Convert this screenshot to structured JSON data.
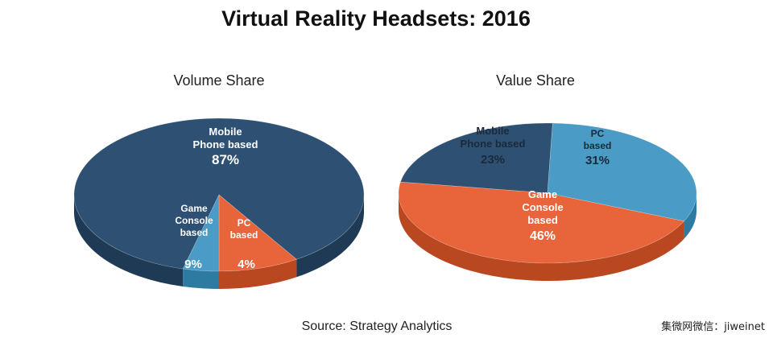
{
  "title": "Virtual Reality Headsets:  2016",
  "source": "Source: Strategy Analytics",
  "watermark": "集微网微信：jiweinet",
  "colors": {
    "mobile": "#2D5073",
    "mobile_side": "#1F3A55",
    "game": "#E8643A",
    "game_side": "#B9471F",
    "pc": "#4A9BC5",
    "pc_side": "#2E7BA2",
    "label_light": "#ffffff",
    "label_dark": "#1B2A3A"
  },
  "chart_data": [
    {
      "type": "pie",
      "title": "Volume Share",
      "slices": [
        {
          "key": "mobile",
          "label": [
            "Mobile",
            "Phone based"
          ],
          "value": 87,
          "value_label": "87%"
        },
        {
          "key": "game",
          "label": [
            "Game",
            "Console",
            "based"
          ],
          "value": 9,
          "value_label": "9%"
        },
        {
          "key": "pc",
          "label": [
            "PC",
            "based"
          ],
          "value": 4,
          "value_label": "4%"
        }
      ]
    },
    {
      "type": "pie",
      "title": "Value Share",
      "slices": [
        {
          "key": "mobile",
          "label": [
            "Mobile",
            "Phone based"
          ],
          "value": 23,
          "value_label": "23%"
        },
        {
          "key": "pc",
          "label": [
            "PC",
            "based"
          ],
          "value": 31,
          "value_label": "31%"
        },
        {
          "key": "game",
          "label": [
            "Game",
            "Console",
            "based"
          ],
          "value": 46,
          "value_label": "46%"
        }
      ]
    }
  ]
}
